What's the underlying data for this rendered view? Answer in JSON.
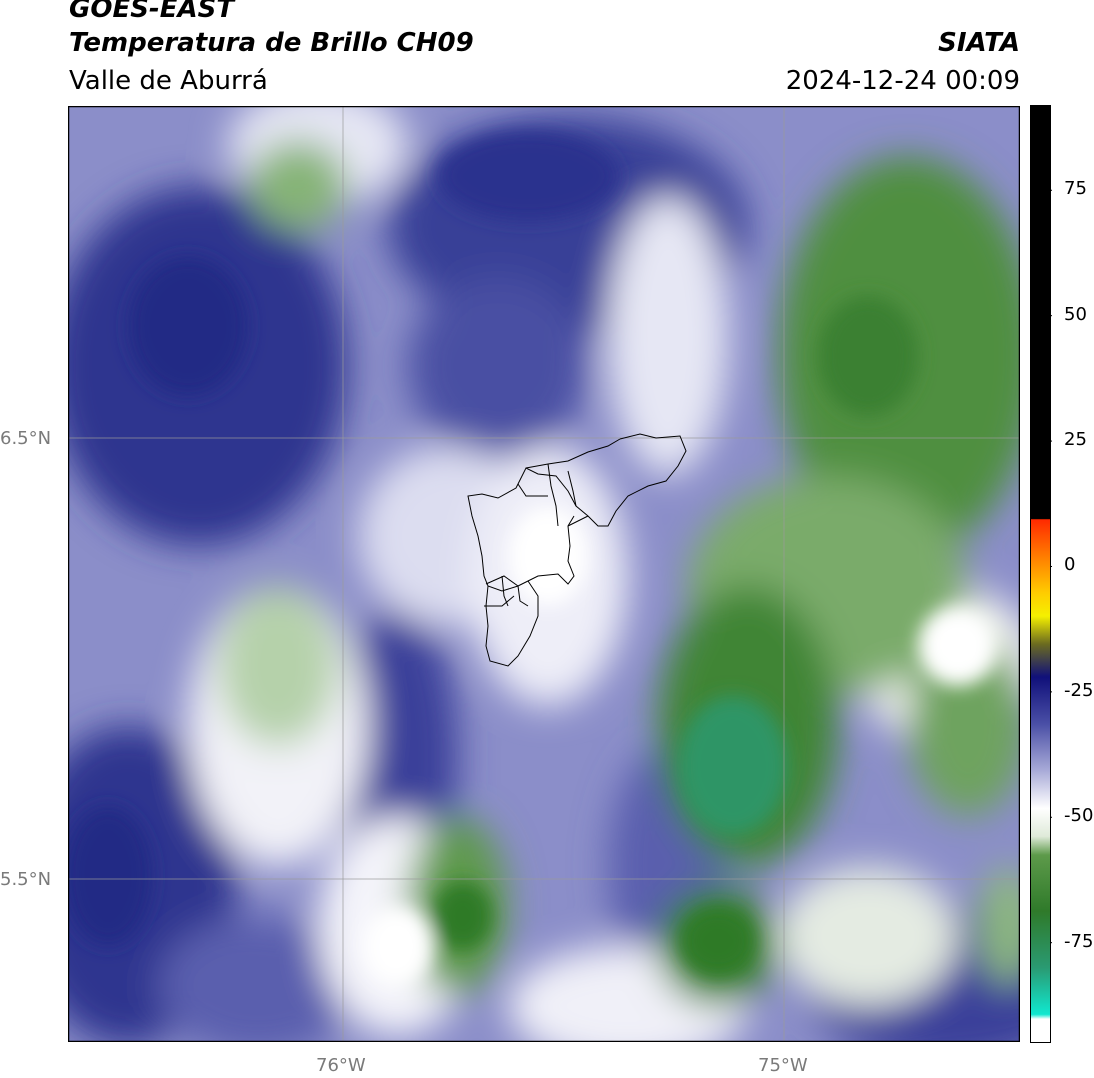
{
  "header": {
    "satellite": "GOES-EAST",
    "product": "Temperatura de Brillo CH09",
    "region": "Valle de Aburrá",
    "organization": "SIATA",
    "datetime": "2024-12-24 00:09"
  },
  "map": {
    "lat_labels": [
      "6.5°N",
      "5.5°N"
    ],
    "lon_labels": [
      "76°W",
      "75°W"
    ],
    "colors": {
      "dark_blue": "#2b338e",
      "mid_blue": "#6f73b9",
      "light_blue": "#b3b5de",
      "white": "#ffffff",
      "light_green": "#cfe3c6",
      "green": "#5d9a4a",
      "dark_green": "#2f7a2a",
      "teal_green": "#2f9a6a"
    }
  },
  "colorbar": {
    "tick_labels": [
      "75",
      "50",
      "25",
      "0",
      "-25",
      "-50",
      "-75"
    ],
    "tick_values": [
      75,
      50,
      25,
      0,
      -25,
      -50,
      -75
    ],
    "range": [
      -95,
      92
    ]
  }
}
